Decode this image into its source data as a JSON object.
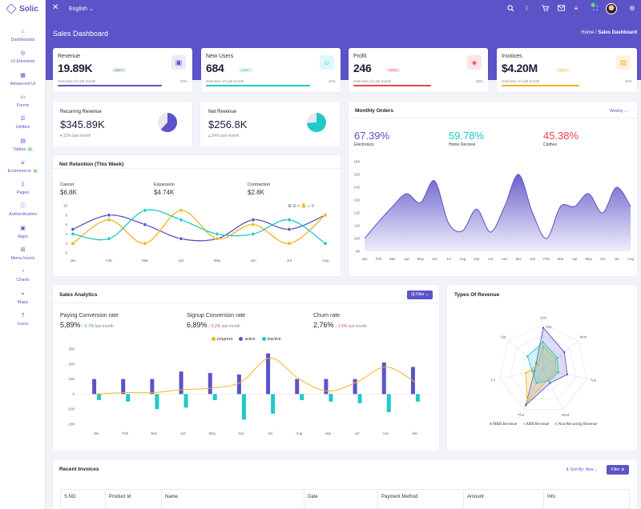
{
  "app": {
    "name": "Solic"
  },
  "topbar": {
    "language": "English",
    "cart_count": "3"
  },
  "sidebar": {
    "items": [
      {
        "label": "Dashboards",
        "icon": "home-icon"
      },
      {
        "label": "UI Elements",
        "icon": "aperture-icon"
      },
      {
        "label": "Advanced UI",
        "icon": "grid-icon"
      },
      {
        "label": "Forms",
        "icon": "folder-icon"
      },
      {
        "label": "Utilities",
        "icon": "layers-icon"
      },
      {
        "label": "Tables",
        "icon": "table-icon",
        "badge": "3"
      },
      {
        "label": "Ecommerce",
        "icon": "cart-icon",
        "badge": "4"
      },
      {
        "label": "Pages",
        "icon": "file-icon"
      },
      {
        "label": "Authentication",
        "icon": "info-icon"
      },
      {
        "label": "Apps",
        "icon": "briefcase-icon"
      },
      {
        "label": "Menu-levels",
        "icon": "sitemap-icon"
      },
      {
        "label": "Charts",
        "icon": "pie-chart-icon"
      },
      {
        "label": "Maps",
        "icon": "map-pin-icon"
      },
      {
        "label": "Icons",
        "icon": "help-circle-icon"
      }
    ]
  },
  "header": {
    "title": "Sales Dashboard",
    "breadcrumb_home": "Home",
    "breadcrumb_sep": "/",
    "breadcrumb_current": "Sales Dashboard"
  },
  "kpis": [
    {
      "label": "Revenue",
      "value": "19.89K",
      "change": "+66% ↑",
      "sub": "Overview of Last month",
      "pct": "40%",
      "progress": 0.4,
      "color": "#5b53c7",
      "icon": "image-icon"
    },
    {
      "label": "New Users",
      "value": "684",
      "change": "+13% ↑",
      "sub": "Overview of Last month",
      "pct": "40%",
      "progress": 0.4,
      "color": "#1fc9c9",
      "icon": "user-icon"
    },
    {
      "label": "Profit",
      "value": "246",
      "change": "+32% ↑",
      "sub": "Overview of Last month",
      "pct": "30%",
      "progress": 0.3,
      "color": "#ef3e55",
      "icon": "box-icon"
    },
    {
      "label": "Invoices",
      "value": "$4.20M",
      "change": "+10% ↑",
      "sub": "Overview of Last month",
      "pct": "30%",
      "progress": 0.3,
      "color": "#f5b31f",
      "icon": "document-icon"
    }
  ],
  "recurring": {
    "label": "Recurring Revenue",
    "value": "$345.89K",
    "sub": "12% last month",
    "share": 0.62
  },
  "net_revenue": {
    "label": "Net Revenue",
    "value": "$256.8K",
    "sub": "24% last month",
    "share": 0.74
  },
  "monthly_orders": {
    "title": "Monthly Orders",
    "period": "Weekly",
    "stats": [
      {
        "value": "67.39%",
        "label": "Electronics",
        "color": "#5b53c7"
      },
      {
        "value": "59.78%",
        "label": "Home Decores",
        "color": "#1fc9c9"
      },
      {
        "value": "45.38%",
        "label": "Clothes",
        "color": "#ef3e55"
      }
    ]
  },
  "retention": {
    "title": "Net Retention (This Week)",
    "stats": [
      {
        "label": "Cancel",
        "value": "$6.8K"
      },
      {
        "label": "Expansion",
        "value": "$4.74K"
      },
      {
        "label": "Contraction",
        "value": "$2.8K"
      }
    ],
    "toolbar_icons": [
      "zoom-in-icon",
      "zoom-out-icon",
      "magnifier-icon",
      "pan-icon",
      "home-icon",
      "menu-icon"
    ]
  },
  "sales_analytics": {
    "title": "Sales Analytics",
    "filter": "Filter",
    "stats": [
      {
        "label": "Paying Conversion rate",
        "value": "5,89%",
        "change": "↑ 0.7%",
        "sub": "last month",
        "up": true
      },
      {
        "label": "Signup Conversion rate",
        "value": "6,89%",
        "change": "↓ 0.2%",
        "sub": "last month",
        "up": false
      },
      {
        "label": "Churn rate",
        "value": "2,76%",
        "change": "↓ 1.5%",
        "sub": "last month",
        "up": false
      }
    ]
  },
  "revenue_types": {
    "title": "Types Of Revenue"
  },
  "invoices": {
    "title": "Recent Invoices",
    "sort": "Sort By: New",
    "filter": "Filter",
    "columns": [
      "S.NO",
      "Product Id",
      "Name",
      "Date",
      "Payment Method",
      "Amount",
      "Info"
    ]
  },
  "chart_data": [
    {
      "type": "line",
      "title": "Net Retention (This Week)",
      "categories": [
        "Jan",
        "Feb",
        "Mar",
        "Apr",
        "May",
        "Jun",
        "Jul",
        "Aug"
      ],
      "ylim": [
        0,
        10
      ],
      "series": [
        {
          "color": "#5b53c7",
          "values": [
            5,
            8,
            6,
            3,
            3,
            7,
            5,
            8
          ]
        },
        {
          "color": "#f5b31f",
          "values": [
            2,
            7,
            2,
            9,
            3,
            6,
            2,
            8
          ]
        },
        {
          "color": "#1fc9c9",
          "values": [
            4,
            3,
            9,
            7,
            4,
            4,
            7,
            2
          ]
        }
      ]
    },
    {
      "type": "area",
      "title": "Monthly Orders",
      "categories": [
        "Jan",
        "Feb",
        "Mar",
        "Apr",
        "May",
        "Jun",
        "Jul",
        "Aug",
        "sep",
        "oct",
        "nov",
        "dec",
        "Jan",
        "Feb",
        "Mar",
        "Apr",
        "May",
        "Jun",
        "Jul",
        "Aug"
      ],
      "ylim": [
        90,
        160
      ],
      "yticks": [
        90,
        100,
        110,
        120,
        130,
        140,
        150,
        160
      ],
      "values": [
        100,
        113,
        125,
        135,
        128,
        145,
        112,
        106,
        123,
        105,
        125,
        150,
        120,
        100,
        125,
        125,
        135,
        120,
        140,
        125
      ]
    },
    {
      "type": "bar",
      "title": "Sales Analytics",
      "categories": [
        "Jan",
        "Feb",
        "Mar",
        "Apr",
        "May",
        "Jun",
        "Jul",
        "Aug",
        "sep",
        "oct",
        "nov",
        "dec"
      ],
      "ylim": [
        -200,
        300
      ],
      "yticks": [
        -200,
        -100,
        0,
        100,
        200,
        300
      ],
      "legend": [
        "progress",
        "active",
        "inactive"
      ],
      "series": [
        {
          "name": "progress",
          "color": "#f5b31f",
          "type": "line",
          "values": [
            0,
            10,
            10,
            30,
            40,
            80,
            240,
            100,
            20,
            80,
            180,
            80
          ]
        },
        {
          "name": "active",
          "color": "#5b53c7",
          "type": "bar",
          "values": [
            100,
            100,
            100,
            150,
            140,
            130,
            270,
            100,
            100,
            100,
            210,
            180
          ]
        },
        {
          "name": "inactive",
          "color": "#1fc9c9",
          "type": "bar",
          "values": [
            -40,
            -50,
            -100,
            -90,
            -40,
            -170,
            -130,
            -40,
            -50,
            -60,
            -120,
            -50
          ]
        }
      ]
    },
    {
      "type": "radar",
      "title": "Types Of Revenue",
      "categories": [
        "Sun",
        "Mon",
        "Tue",
        "Wed",
        "Thu",
        "Fri",
        "Sat"
      ],
      "rlabel_max": "100",
      "series": [
        {
          "name": "MRR Revenue",
          "color": "#5b53c7",
          "values": [
            92,
            60,
            55,
            35,
            90,
            20,
            20
          ]
        },
        {
          "name": "ARR Revenue",
          "color": "#f5b31f",
          "values": [
            50,
            35,
            30,
            25,
            82,
            40,
            15
          ]
        },
        {
          "name": "Non-Recurring Revenue",
          "color": "#1fc9c9",
          "values": [
            60,
            40,
            35,
            30,
            35,
            25,
            45
          ]
        }
      ]
    }
  ]
}
